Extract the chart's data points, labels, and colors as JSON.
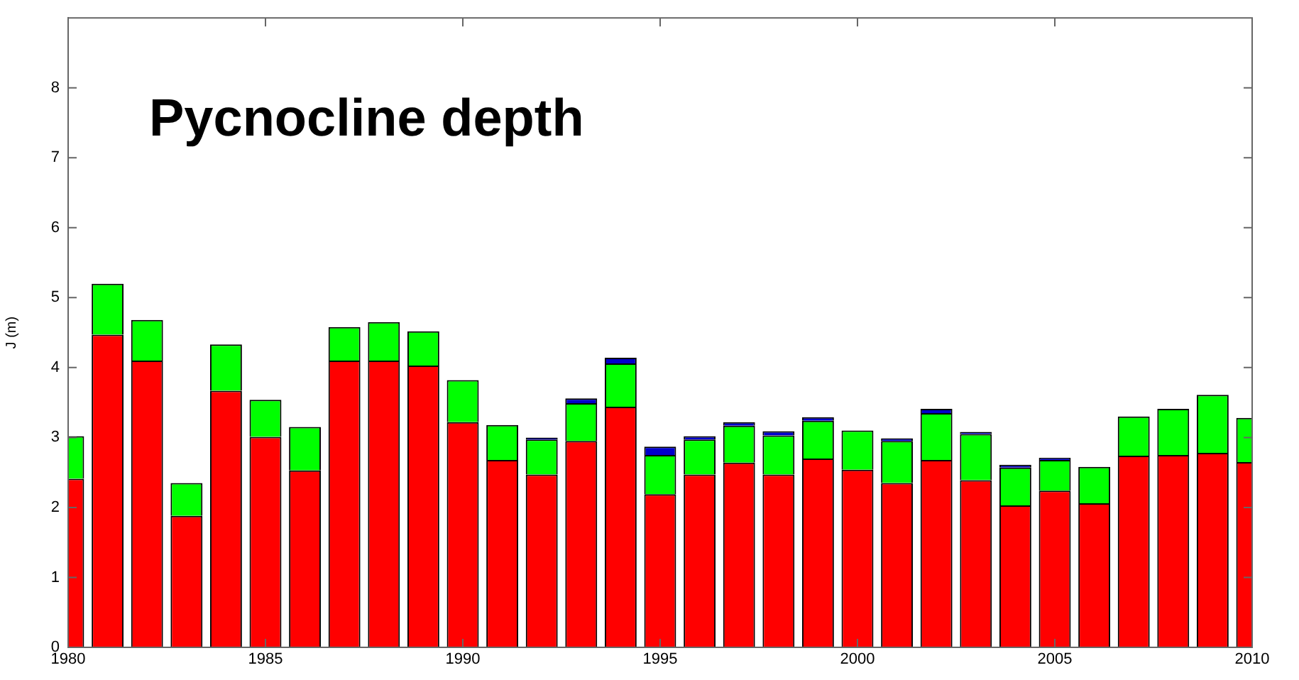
{
  "chart_data": {
    "type": "bar",
    "title": "Pycnocline depth",
    "ylabel": "J (m)",
    "stacked": true,
    "x": [
      1980,
      1981,
      1982,
      1983,
      1984,
      1985,
      1986,
      1987,
      1988,
      1989,
      1990,
      1991,
      1992,
      1993,
      1994,
      1995,
      1996,
      1997,
      1998,
      1999,
      2000,
      2001,
      2002,
      2003,
      2004,
      2005,
      2006,
      2007,
      2008,
      2009,
      2010
    ],
    "series": [
      {
        "color": "#ff0000",
        "values": [
          2.41,
          4.47,
          4.1,
          1.88,
          3.67,
          3.01,
          2.53,
          4.1,
          4.1,
          4.03,
          3.22,
          2.68,
          2.47,
          2.95,
          3.44,
          2.19,
          2.47,
          2.64,
          2.47,
          2.7,
          2.54,
          2.35,
          2.68,
          2.39,
          2.03,
          2.24,
          2.06,
          2.74,
          2.75,
          2.78,
          2.65
        ]
      },
      {
        "color": "#00ff00",
        "values": [
          0.61,
          0.73,
          0.58,
          0.47,
          0.66,
          0.53,
          0.62,
          0.48,
          0.55,
          0.49,
          0.6,
          0.5,
          0.5,
          0.54,
          0.62,
          0.56,
          0.5,
          0.53,
          0.56,
          0.54,
          0.56,
          0.6,
          0.67,
          0.66,
          0.54,
          0.44,
          0.52,
          0.56,
          0.66,
          0.83,
          0.63
        ]
      },
      {
        "color": "#0000cc",
        "values": [
          0,
          0,
          0,
          0,
          0,
          0,
          0,
          0,
          0,
          0,
          0,
          0,
          0.03,
          0.07,
          0.08,
          0.12,
          0.05,
          0.05,
          0.06,
          0.05,
          0,
          0.04,
          0.06,
          0.03,
          0.04,
          0.03,
          0,
          0,
          0,
          0,
          0
        ]
      }
    ],
    "xlim": [
      1980,
      2010
    ],
    "xticks": [
      1980,
      1985,
      1990,
      1995,
      2000,
      2005,
      2010
    ],
    "ylim": [
      0,
      9
    ],
    "yticks": [
      0,
      1,
      2,
      3,
      4,
      5,
      6,
      7,
      8
    ],
    "grid": false,
    "legend": false
  }
}
